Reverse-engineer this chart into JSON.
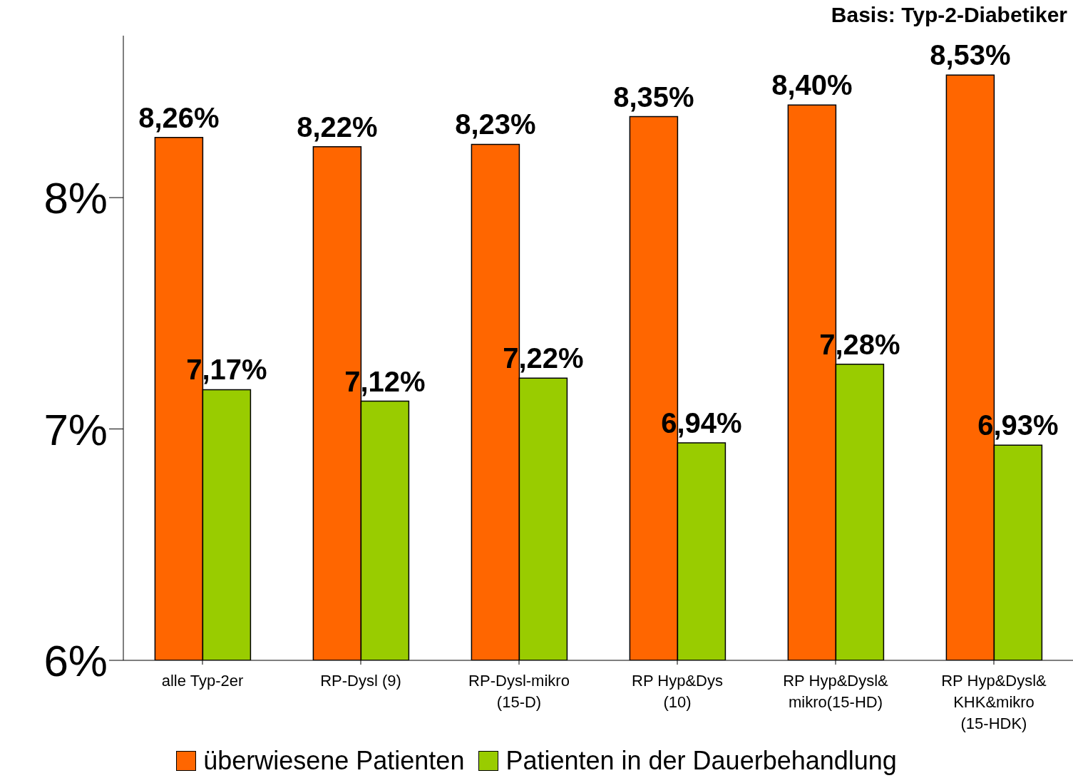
{
  "chart_data": {
    "type": "bar",
    "title": "Basis: Typ-2-Diabetiker",
    "categories": [
      "alle Typ-2er",
      "RP-Dysl (9)",
      "RP-Dysl-mikro\n(15-D)",
      "RP Hyp&Dys\n(10)",
      "RP Hyp&Dysl&\nmikro(15-HD)",
      "RP Hyp&Dysl&\nKHK&mikro\n(15-HDK)"
    ],
    "series": [
      {
        "name": "überwiesene Patienten",
        "color": "#ff6600",
        "values": [
          8.26,
          8.22,
          8.23,
          8.35,
          8.4,
          8.53
        ],
        "value_labels": [
          "8,26%",
          "8,22%",
          "8,23%",
          "8,35%",
          "8,40%",
          "8,53%"
        ]
      },
      {
        "name": "Patienten in der Dauerbehandlung",
        "color": "#99cc00",
        "values": [
          7.17,
          7.12,
          7.22,
          6.94,
          7.28,
          6.93
        ],
        "value_labels": [
          "7,17%",
          "7,12%",
          "7,22%",
          "6,94%",
          "7,28%",
          "6,93%"
        ]
      }
    ],
    "ylim": [
      6,
      8.7
    ],
    "yticks": [
      {
        "value": 6,
        "label": "6%"
      },
      {
        "value": 7,
        "label": "7%"
      },
      {
        "value": 8,
        "label": "8%"
      }
    ],
    "grid": false,
    "legend": "bottom"
  }
}
